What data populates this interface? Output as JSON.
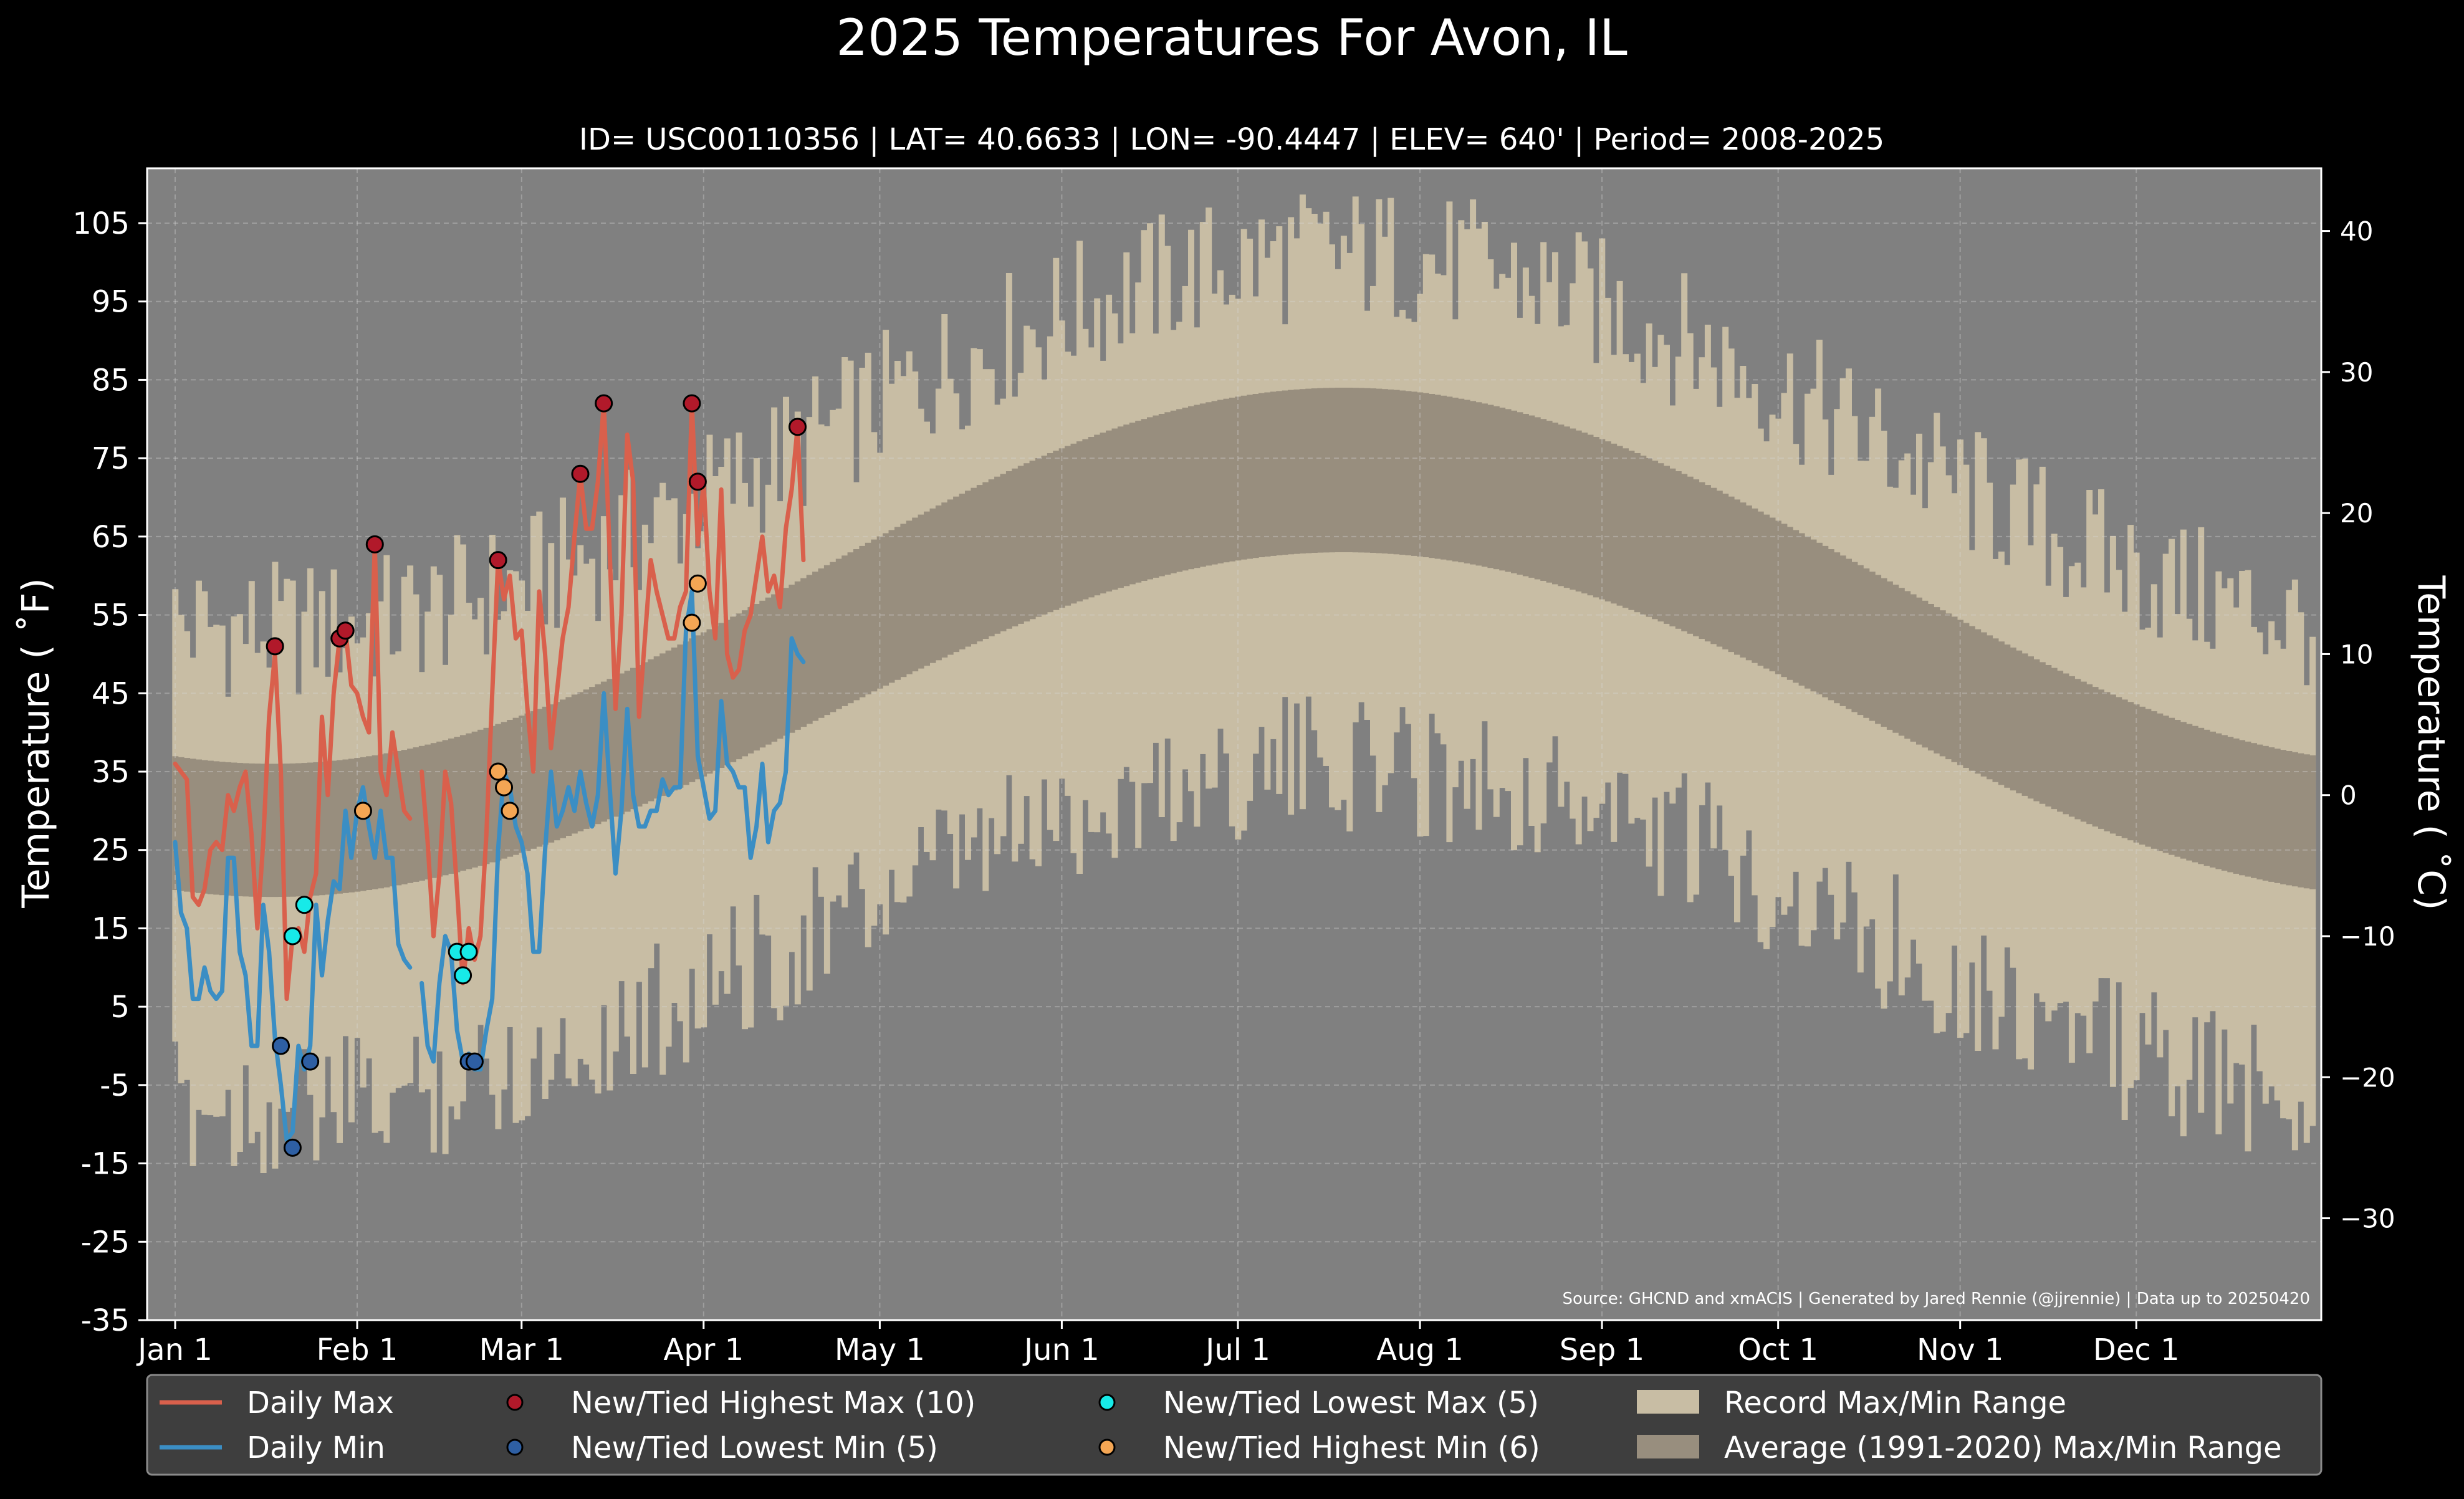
{
  "chart_data": {
    "type": "area",
    "title": "2025 Temperatures For Avon, IL",
    "subtitle": "ID= USC00110356 | LAT= 40.6633 | LON= -90.4447 | ELEV= 640' | Period= 2008-2025",
    "ylabel": "Temperature ($^\\circ$F)",
    "ylabel_display": "Temperature ( ˚F)",
    "y2label_display": "Temperature ( ˚C)",
    "source": "Source: GHCND and xmACIS | Generated by Jared Rennie (@jjrennie) | Data up to 20250420",
    "ylim": [
      -35,
      112
    ],
    "yticks": [
      105,
      95,
      85,
      75,
      65,
      55,
      45,
      35,
      25,
      15,
      5,
      -5,
      -15,
      -25,
      -35
    ],
    "y2ticks": [
      40,
      30,
      20,
      10,
      0,
      -10,
      -20,
      -30
    ],
    "y2tick_labels": [
      "40",
      "30",
      "20",
      "10",
      "0",
      "−10",
      "−20",
      "−30"
    ],
    "x_month_ticks": [
      {
        "label": "Jan 1",
        "day": 1
      },
      {
        "label": "Feb 1",
        "day": 32
      },
      {
        "label": "Mar 1",
        "day": 60
      },
      {
        "label": "Apr 1",
        "day": 91
      },
      {
        "label": "May 1",
        "day": 121
      },
      {
        "label": "Jun 1",
        "day": 152
      },
      {
        "label": "Jul 1",
        "day": 182
      },
      {
        "label": "Aug 1",
        "day": 213
      },
      {
        "label": "Sep 1",
        "day": 244
      },
      {
        "label": "Oct 1",
        "day": 274
      },
      {
        "label": "Nov 1",
        "day": 305
      },
      {
        "label": "Dec 1",
        "day": 335
      }
    ],
    "grid": true,
    "legend_placement": "bottom",
    "series": [
      {
        "name": "Daily Max",
        "color": "#d9604c",
        "points": [
          [
            1,
            36
          ],
          [
            2,
            35
          ],
          [
            3,
            34
          ],
          [
            4,
            19
          ],
          [
            5,
            18
          ],
          [
            6,
            20
          ],
          [
            7,
            25
          ],
          [
            8,
            26
          ],
          [
            9,
            25
          ],
          [
            10,
            32
          ],
          [
            11,
            30
          ],
          [
            12,
            33
          ],
          [
            13,
            35
          ],
          [
            14,
            27
          ],
          [
            15,
            15
          ],
          [
            16,
            26
          ],
          [
            17,
            42
          ],
          [
            18,
            50
          ],
          [
            19,
            35
          ],
          [
            20,
            6
          ],
          [
            21,
            14
          ],
          [
            22,
            15
          ],
          [
            23,
            12
          ],
          [
            24,
            19
          ],
          [
            25,
            22
          ],
          [
            26,
            42
          ],
          [
            27,
            32
          ],
          [
            28,
            45
          ],
          [
            29,
            52
          ],
          [
            30,
            53
          ],
          [
            31,
            46
          ],
          [
            32,
            45
          ],
          [
            33,
            42
          ],
          [
            34,
            40
          ],
          [
            35,
            64
          ],
          [
            36,
            35
          ],
          [
            37,
            32
          ],
          [
            38,
            40
          ],
          [
            39,
            35
          ],
          [
            40,
            30
          ],
          [
            41,
            29
          ],
          [
            42,
            null
          ],
          [
            43,
            35
          ],
          [
            44,
            26
          ],
          [
            45,
            14
          ],
          [
            46,
            22
          ],
          [
            47,
            35
          ],
          [
            48,
            31
          ],
          [
            49,
            20
          ],
          [
            50,
            8
          ],
          [
            51,
            15
          ],
          [
            52,
            11
          ],
          [
            53,
            14
          ],
          [
            54,
            27
          ],
          [
            55,
            45
          ],
          [
            56,
            62
          ],
          [
            57,
            57
          ],
          [
            58,
            60
          ],
          [
            59,
            52
          ],
          [
            60,
            53
          ],
          [
            61,
            43
          ],
          [
            62,
            35
          ],
          [
            63,
            58
          ],
          [
            64,
            50
          ],
          [
            65,
            38
          ],
          [
            66,
            45
          ],
          [
            67,
            52
          ],
          [
            68,
            56
          ],
          [
            69,
            65
          ],
          [
            70,
            73
          ],
          [
            71,
            66
          ],
          [
            72,
            66
          ],
          [
            73,
            72
          ],
          [
            74,
            82
          ],
          [
            75,
            63
          ],
          [
            76,
            43
          ],
          [
            77,
            55
          ],
          [
            78,
            78
          ],
          [
            79,
            72
          ],
          [
            80,
            42
          ],
          [
            81,
            52
          ],
          [
            82,
            62
          ],
          [
            83,
            58
          ],
          [
            84,
            55
          ],
          [
            85,
            52
          ],
          [
            86,
            52
          ],
          [
            87,
            56
          ],
          [
            88,
            58
          ],
          [
            89,
            82
          ],
          [
            90,
            64
          ],
          [
            91,
            72
          ],
          [
            92,
            58
          ],
          [
            93,
            52
          ],
          [
            94,
            71
          ],
          [
            95,
            50
          ],
          [
            96,
            47
          ],
          [
            97,
            48
          ],
          [
            98,
            53
          ],
          [
            99,
            55
          ],
          [
            100,
            60
          ],
          [
            101,
            65
          ],
          [
            102,
            58
          ],
          [
            103,
            60
          ],
          [
            104,
            56
          ],
          [
            105,
            66
          ],
          [
            106,
            71
          ],
          [
            107,
            79
          ],
          [
            108,
            62
          ]
        ]
      },
      {
        "name": "Daily Min",
        "color": "#3b8ec4",
        "points": [
          [
            1,
            26
          ],
          [
            2,
            17
          ],
          [
            3,
            15
          ],
          [
            4,
            6
          ],
          [
            5,
            6
          ],
          [
            6,
            10
          ],
          [
            7,
            7
          ],
          [
            8,
            6
          ],
          [
            9,
            7
          ],
          [
            10,
            24
          ],
          [
            11,
            24
          ],
          [
            12,
            12
          ],
          [
            13,
            9
          ],
          [
            14,
            0
          ],
          [
            15,
            0
          ],
          [
            16,
            18
          ],
          [
            17,
            12
          ],
          [
            18,
            1
          ],
          [
            19,
            -5
          ],
          [
            20,
            -12
          ],
          [
            21,
            -11
          ],
          [
            22,
            0
          ],
          [
            23,
            -3
          ],
          [
            24,
            0
          ],
          [
            25,
            18
          ],
          [
            26,
            9
          ],
          [
            27,
            16
          ],
          [
            28,
            21
          ],
          [
            29,
            20
          ],
          [
            30,
            30
          ],
          [
            31,
            24
          ],
          [
            32,
            30
          ],
          [
            33,
            33
          ],
          [
            34,
            28
          ],
          [
            35,
            24
          ],
          [
            36,
            30
          ],
          [
            37,
            24
          ],
          [
            38,
            24
          ],
          [
            39,
            13
          ],
          [
            40,
            11
          ],
          [
            41,
            10
          ],
          [
            42,
            null
          ],
          [
            43,
            8
          ],
          [
            44,
            0
          ],
          [
            45,
            -2
          ],
          [
            46,
            8
          ],
          [
            47,
            14
          ],
          [
            48,
            12
          ],
          [
            49,
            2
          ],
          [
            50,
            -2
          ],
          [
            51,
            -1
          ],
          [
            52,
            -3
          ],
          [
            53,
            -3
          ],
          [
            54,
            2
          ],
          [
            55,
            6
          ],
          [
            56,
            25
          ],
          [
            57,
            35
          ],
          [
            58,
            33
          ],
          [
            59,
            28
          ],
          [
            60,
            26
          ],
          [
            61,
            22
          ],
          [
            62,
            12
          ],
          [
            63,
            12
          ],
          [
            64,
            25
          ],
          [
            65,
            35
          ],
          [
            66,
            28
          ],
          [
            67,
            30
          ],
          [
            68,
            33
          ],
          [
            69,
            30
          ],
          [
            70,
            35
          ],
          [
            71,
            31
          ],
          [
            72,
            28
          ],
          [
            73,
            32
          ],
          [
            74,
            45
          ],
          [
            75,
            33
          ],
          [
            76,
            22
          ],
          [
            77,
            30
          ],
          [
            78,
            43
          ],
          [
            79,
            32
          ],
          [
            80,
            28
          ],
          [
            81,
            28
          ],
          [
            82,
            30
          ],
          [
            83,
            30
          ],
          [
            84,
            34
          ],
          [
            85,
            32
          ],
          [
            86,
            33
          ],
          [
            87,
            33
          ],
          [
            88,
            53
          ],
          [
            89,
            58
          ],
          [
            90,
            37
          ],
          [
            91,
            33
          ],
          [
            92,
            29
          ],
          [
            93,
            30
          ],
          [
            94,
            44
          ],
          [
            95,
            36
          ],
          [
            96,
            35
          ],
          [
            97,
            33
          ],
          [
            98,
            33
          ],
          [
            99,
            24
          ],
          [
            100,
            28
          ],
          [
            101,
            36
          ],
          [
            102,
            26
          ],
          [
            103,
            30
          ],
          [
            104,
            31
          ],
          [
            105,
            35
          ],
          [
            106,
            52
          ],
          [
            107,
            50
          ],
          [
            108,
            49
          ]
        ]
      }
    ],
    "markers": [
      {
        "name": "New/Tied Highest Max (10)",
        "color": "#b1192a",
        "points": [
          [
            18,
            51
          ],
          [
            29,
            52
          ],
          [
            30,
            53
          ],
          [
            35,
            64
          ],
          [
            56,
            62
          ],
          [
            70,
            73
          ],
          [
            74,
            82
          ],
          [
            89,
            82
          ],
          [
            90,
            72
          ],
          [
            107,
            79
          ]
        ]
      },
      {
        "name": "New/Tied Lowest Min (5)",
        "color": "#2e5fa3",
        "points": [
          [
            19,
            0
          ],
          [
            21,
            -13
          ],
          [
            24,
            -2
          ],
          [
            51,
            -2
          ],
          [
            52,
            -2
          ]
        ]
      },
      {
        "name": "New/Tied Lowest Max (5)",
        "color": "#17eae8",
        "points": [
          [
            21,
            14
          ],
          [
            23,
            18
          ],
          [
            49,
            12
          ],
          [
            50,
            9
          ],
          [
            51,
            12
          ]
        ]
      },
      {
        "name": "New/Tied Highest Min (6)",
        "color": "#f4a654",
        "points": [
          [
            33,
            30
          ],
          [
            56,
            35
          ],
          [
            57,
            33
          ],
          [
            58,
            30
          ],
          [
            89,
            54
          ],
          [
            90,
            59
          ]
        ]
      }
    ],
    "bands": [
      {
        "name": "Record Max/Min Range",
        "color": "#c8bda4"
      },
      {
        "name": "Average (1991-2020) Max/Min Range",
        "color": "#988e7e"
      }
    ],
    "background_color": "#808080",
    "legend": [
      {
        "kind": "line",
        "color": "#d9604c",
        "label": "Daily Max"
      },
      {
        "kind": "line",
        "color": "#3b8ec4",
        "label": "Daily Min"
      },
      {
        "kind": "dot",
        "color": "#b1192a",
        "label": "New/Tied Highest Max (10)"
      },
      {
        "kind": "dot",
        "color": "#2e5fa3",
        "label": "New/Tied Lowest Min (5)"
      },
      {
        "kind": "dot",
        "color": "#17eae8",
        "label": "New/Tied Lowest Max (5)"
      },
      {
        "kind": "dot",
        "color": "#f4a654",
        "label": "New/Tied Highest Min (6)"
      },
      {
        "kind": "patch",
        "color": "#c8bda4",
        "label": "Record Max/Min Range"
      },
      {
        "kind": "patch",
        "color": "#988e7e",
        "label": "Average (1991-2020) Max/Min Range"
      }
    ]
  }
}
